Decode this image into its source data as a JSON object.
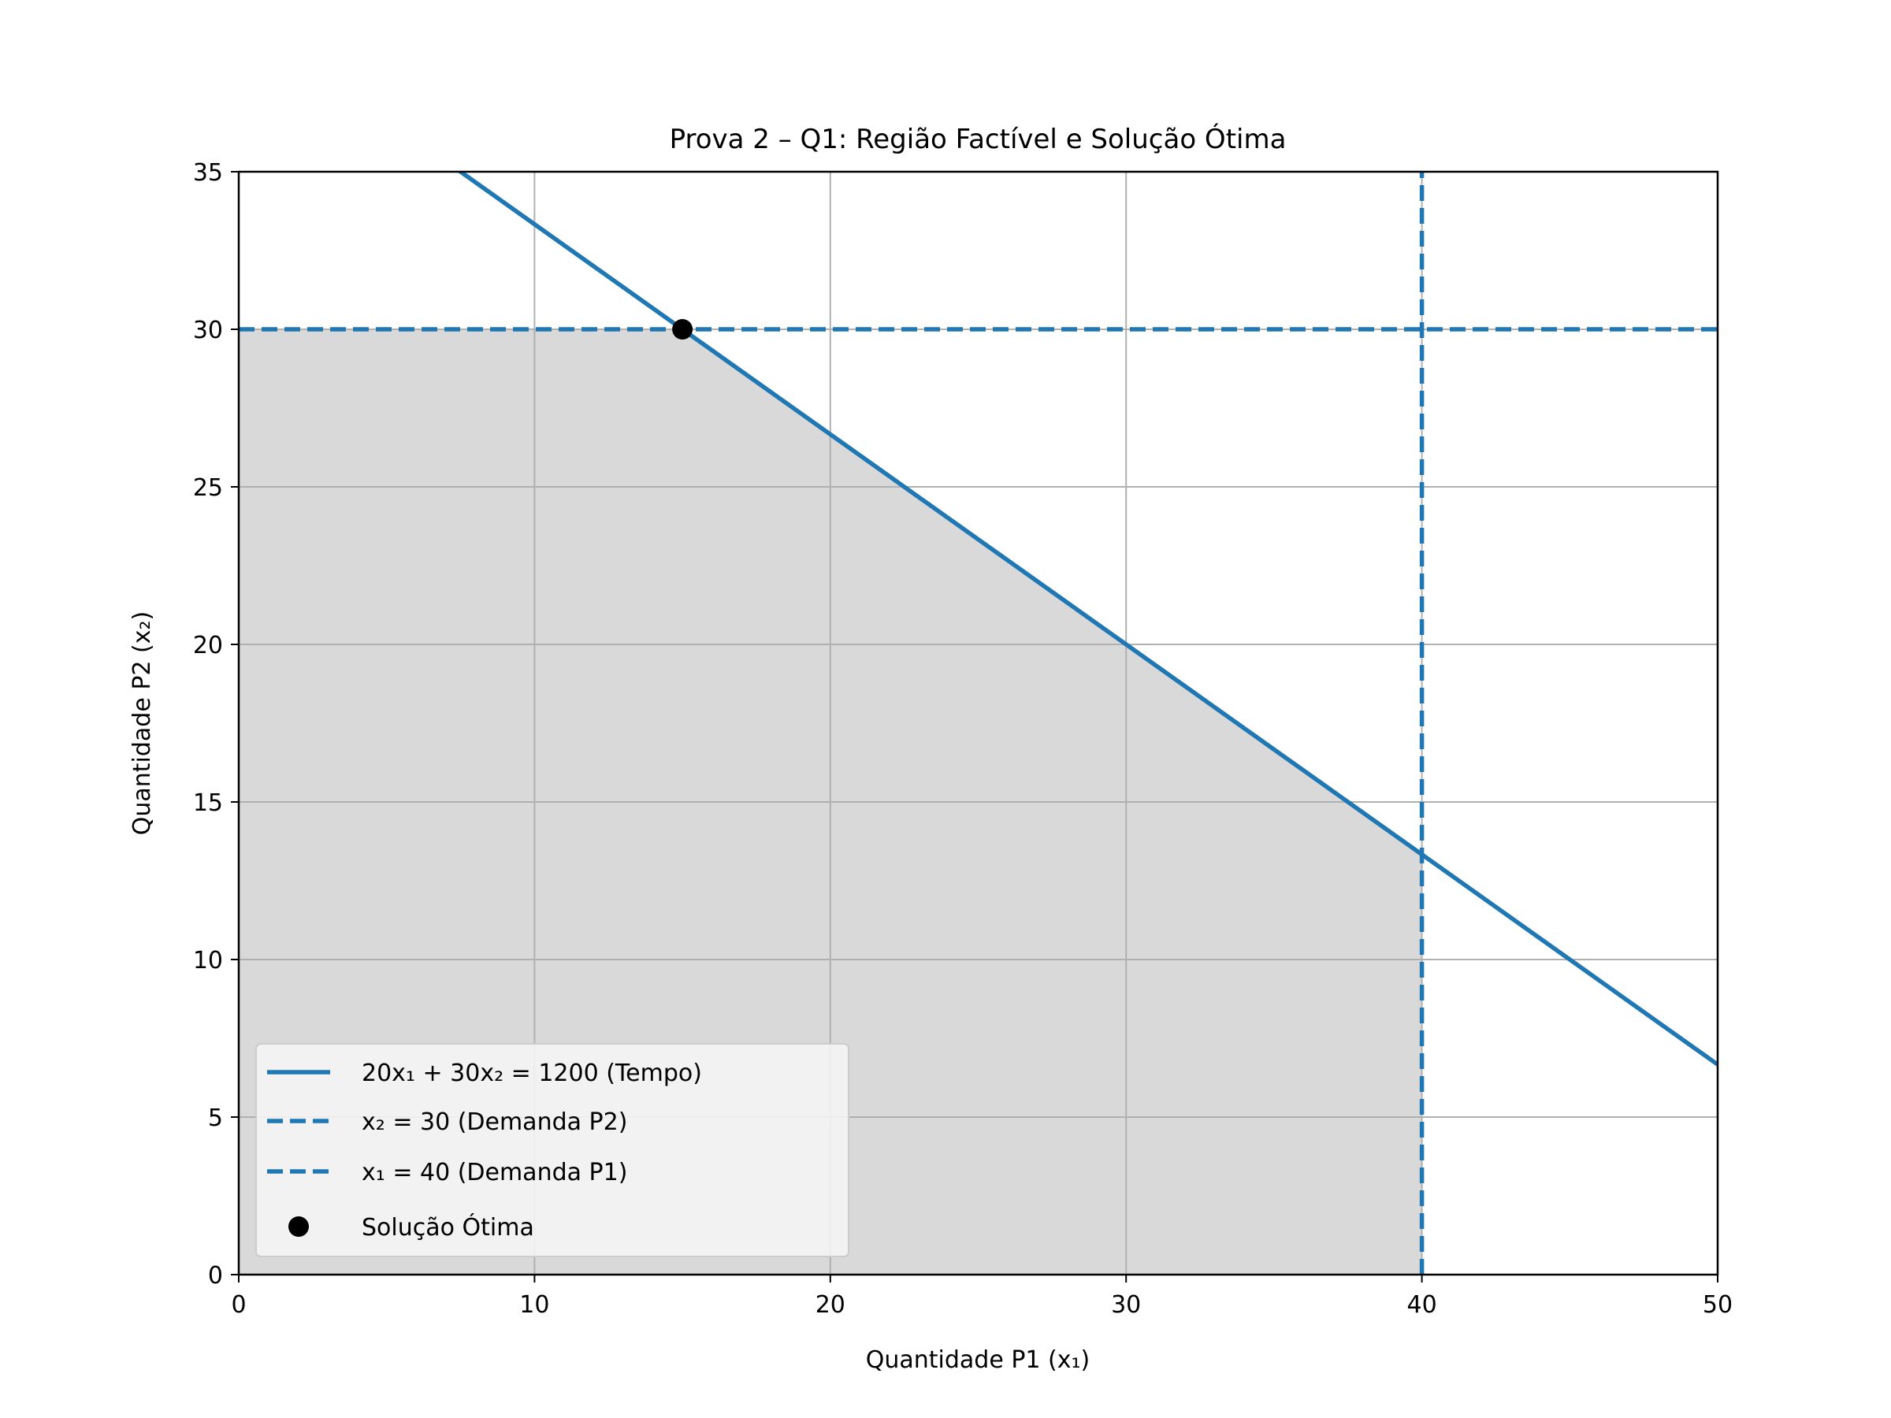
{
  "chart_data": {
    "type": "line",
    "title": "Prova 2 – Q1: Região Factível e Solução Ótima",
    "xlabel": "Quantidade P1 (x₁)",
    "ylabel": "Quantidade P2 (x₂)",
    "xlim": [
      0,
      50
    ],
    "ylim": [
      0,
      35
    ],
    "xticks": [
      0,
      10,
      20,
      30,
      40,
      50
    ],
    "yticks": [
      0,
      5,
      10,
      15,
      20,
      25,
      30,
      35
    ],
    "grid": true,
    "legend_position": "lower-left",
    "colors": {
      "line": "#1f77b4",
      "feasible_region": "#d9d9d9",
      "optimal_point": "#000000",
      "grid": "#b0b0b0"
    },
    "feasible_region": [
      [
        0,
        0
      ],
      [
        0,
        30
      ],
      [
        15,
        30
      ],
      [
        40,
        13.333
      ],
      [
        40,
        0
      ]
    ],
    "series": [
      {
        "name": "20x₁ + 30x₂ = 1200 (Tempo)",
        "style": "solid",
        "points": [
          [
            0,
            40
          ],
          [
            50,
            6.667
          ]
        ]
      },
      {
        "name": "x₂ = 30 (Demanda P2)",
        "style": "dashed",
        "points": [
          [
            0,
            30
          ],
          [
            50,
            30
          ]
        ]
      },
      {
        "name": "x₁ = 40 (Demanda P1)",
        "style": "dashed",
        "points": [
          [
            40,
            0
          ],
          [
            40,
            35
          ]
        ]
      }
    ],
    "optimal_point": {
      "name": "Solução Ótima",
      "x": 15,
      "y": 30
    }
  }
}
